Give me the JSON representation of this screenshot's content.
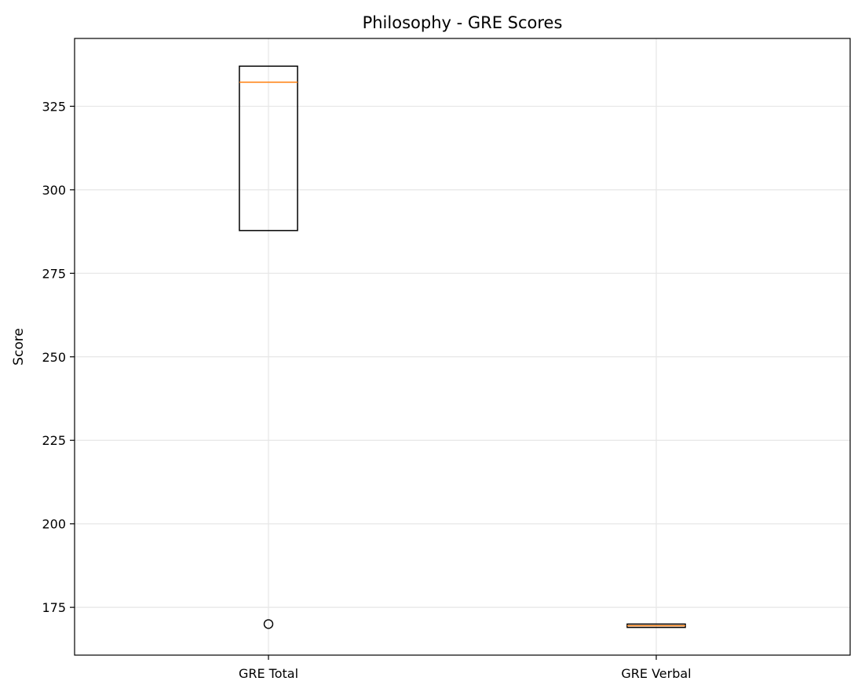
{
  "chart_data": {
    "type": "box",
    "title": "Philosophy - GRE Scores",
    "xlabel": "",
    "ylabel": "Score",
    "ylim": [
      160.7,
      345.3
    ],
    "yticks": [
      175,
      200,
      225,
      250,
      275,
      300,
      325
    ],
    "grid": true,
    "categories": [
      "GRE Total",
      "GRE Verbal"
    ],
    "boxes": [
      {
        "label": "GRE Total",
        "whisker_low": 287.8,
        "q1": 287.8,
        "median": 332.2,
        "q3": 337.0,
        "whisker_high": 337.0,
        "outliers": [
          170
        ]
      },
      {
        "label": "GRE Verbal",
        "whisker_low": 169.0,
        "q1": 169.0,
        "median": 169.5,
        "q3": 170.0,
        "whisker_high": 170.0,
        "outliers": []
      }
    ],
    "colors": {
      "box_edge": "#000000",
      "median": "#ff7f0e",
      "grid": "#e6e6e6",
      "axes": "#000000"
    }
  }
}
